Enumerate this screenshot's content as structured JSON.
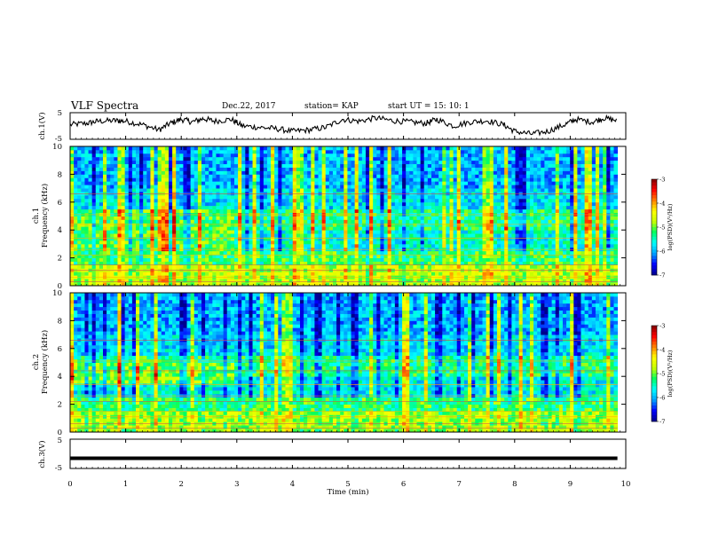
{
  "header": {
    "title": "VLF Spectra",
    "date": "Dec.22, 2017",
    "station": "station= KAP",
    "start": "start  UT =   15: 10: 1"
  },
  "chart_data": [
    {
      "type": "line",
      "name": "ch1-waveform",
      "ylabel": "ch.1(V)",
      "ylim": [
        -5,
        5
      ],
      "yticks": [
        "5",
        "-5"
      ],
      "xlim": [
        0,
        10
      ],
      "x": [
        0.0,
        0.3,
        0.5,
        0.8,
        1.0,
        1.3,
        1.6,
        1.8,
        2.0,
        2.2,
        2.4,
        2.6,
        2.9,
        3.1,
        3.4,
        3.7,
        4.0,
        4.3,
        4.6,
        4.9,
        5.2,
        5.5,
        5.8,
        6.1,
        6.4,
        6.6,
        6.9,
        7.2,
        7.5,
        7.8,
        8.0,
        8.3,
        8.6,
        8.9,
        9.1,
        9.4,
        9.6,
        9.85
      ],
      "values": [
        0.5,
        1.0,
        1.8,
        2.0,
        1.8,
        0.5,
        -1.5,
        1.0,
        2.5,
        1.5,
        2.8,
        1.8,
        2.5,
        0.0,
        -0.5,
        -1.0,
        -2.0,
        -1.5,
        -0.5,
        2.5,
        1.8,
        3.0,
        2.0,
        1.5,
        1.0,
        2.5,
        0.0,
        1.5,
        2.0,
        0.5,
        -2.0,
        -3.0,
        -2.0,
        0.5,
        2.5,
        1.5,
        3.0,
        2.0
      ]
    },
    {
      "type": "heatmap",
      "name": "ch1-spectrogram",
      "ylabel": "ch.1\nFrequency  (kHz)",
      "ylim": [
        0,
        10
      ],
      "yticks": [
        "0",
        "2",
        "4",
        "6",
        "8",
        "10"
      ],
      "xlim": [
        0,
        9.85
      ],
      "colorbar": {
        "label": "log(PSD)(V²/Hz)",
        "range": [
          -7,
          -3
        ],
        "ticks": [
          "-3",
          "-4",
          "-5",
          "-6",
          "-7"
        ]
      },
      "bands": [
        {
          "f": [
            0,
            1.5
          ],
          "level": -4.7
        },
        {
          "f": [
            1.5,
            2.5
          ],
          "level": -5.2
        },
        {
          "f": [
            2.5,
            4.0
          ],
          "level": -5.6
        },
        {
          "f": [
            4.0,
            5.6
          ],
          "level": -5.3
        },
        {
          "f": [
            5.6,
            7.0
          ],
          "level": -5.8
        },
        {
          "f": [
            7.0,
            10.0
          ],
          "level": -6.0
        }
      ],
      "step_t": 2.95,
      "step_f": [
        2.5,
        5.5
      ],
      "step_level": -5.1
    },
    {
      "type": "heatmap",
      "name": "ch2-spectrogram",
      "ylabel": "ch.2\nFrequency  (kHz)",
      "ylim": [
        0,
        10
      ],
      "yticks": [
        "0",
        "2",
        "4",
        "6",
        "8",
        "10"
      ],
      "xlim": [
        0,
        9.85
      ],
      "colorbar": {
        "label": "log(PSD)(V²/Hz)",
        "range": [
          -7,
          -3
        ],
        "ticks": [
          "-3",
          "-4",
          "-5",
          "-6",
          "-7"
        ]
      },
      "bands": [
        {
          "f": [
            0,
            1.5
          ],
          "level": -4.8
        },
        {
          "f": [
            1.5,
            2.5
          ],
          "level": -5.2
        },
        {
          "f": [
            2.5,
            4.0
          ],
          "level": -5.7
        },
        {
          "f": [
            4.0,
            5.6
          ],
          "level": -5.3
        },
        {
          "f": [
            5.6,
            7.0
          ],
          "level": -5.8
        },
        {
          "f": [
            7.0,
            10.0
          ],
          "level": -6.0
        }
      ],
      "step_t": 2.95,
      "step_f": [
        3.5,
        5.0
      ],
      "step_level": -5.0
    },
    {
      "type": "line",
      "name": "ch3-waveform",
      "ylabel": "ch.3(V)",
      "ylim": [
        -5,
        5
      ],
      "yticks": [
        "5",
        "-5"
      ],
      "xlim": [
        0,
        10
      ],
      "x": [
        0,
        9.85
      ],
      "values": [
        -1.5,
        -1.5
      ]
    }
  ],
  "xaxis": {
    "label": "Time  (min)",
    "ticks": [
      "0",
      "1",
      "2",
      "3",
      "4",
      "5",
      "6",
      "7",
      "8",
      "9",
      "10"
    ],
    "range": [
      0,
      10
    ]
  },
  "colors": {
    "line": "#000000",
    "colormap": [
      "#00008c",
      "#0000ff",
      "#00a0ff",
      "#00ffff",
      "#00ff60",
      "#c8ff00",
      "#ffff00",
      "#ff8000",
      "#ff0000",
      "#800000"
    ]
  }
}
